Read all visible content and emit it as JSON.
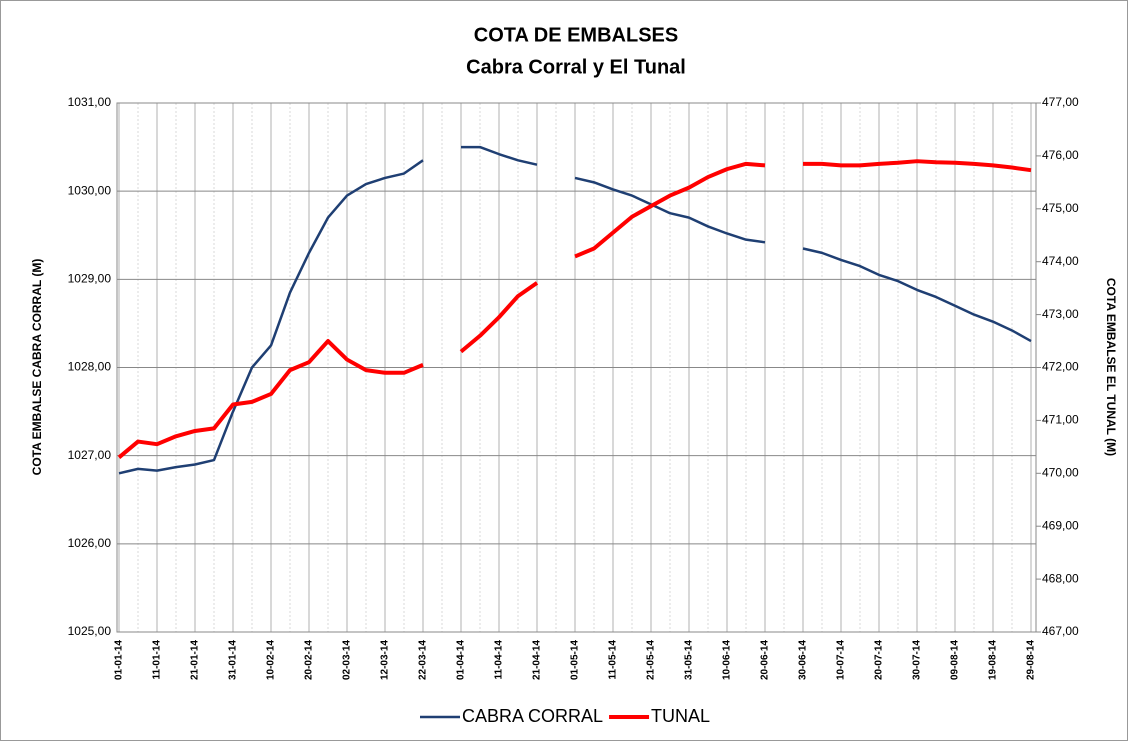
{
  "chart_data": {
    "type": "line",
    "title": "COTA DE EMBALSES",
    "subtitle": "Cabra Corral y El Tunal",
    "y_label": "COTA EMBALSE CABRA CORRAL (M)",
    "y2_label": "COTA EMBALSE EL TUNAL (M)",
    "categories": [
      "01-01-14",
      null,
      "11-01-14",
      null,
      "21-01-14",
      null,
      "31-01-14",
      null,
      "10-02-14",
      null,
      "20-02-14",
      null,
      "02-03-14",
      null,
      "12-03-14",
      null,
      "22-03-14",
      null,
      "01-04-14",
      null,
      "11-04-14",
      null,
      "21-04-14",
      null,
      "01-05-14",
      null,
      "11-05-14",
      null,
      "21-05-14",
      null,
      "31-05-14",
      null,
      "10-06-14",
      null,
      "20-06-14",
      null,
      "30-06-14",
      null,
      "10-07-14",
      null,
      "20-07-14",
      null,
      "30-07-14",
      null,
      "09-08-14",
      null,
      "19-08-14",
      null,
      "29-08-14"
    ],
    "ylim": [
      1025,
      1031
    ],
    "yticks": [
      {
        "value": 1025,
        "label": "1025,00"
      },
      {
        "value": 1026,
        "label": "1026,00"
      },
      {
        "value": 1027,
        "label": "1027,00"
      },
      {
        "value": 1028,
        "label": "1028,00"
      },
      {
        "value": 1029,
        "label": "1029,00"
      },
      {
        "value": 1030,
        "label": "1030,00"
      },
      {
        "value": 1031,
        "label": "1031,00"
      }
    ],
    "y2lim": [
      467,
      477
    ],
    "y2ticks": [
      {
        "value": 467,
        "label": "467,00"
      },
      {
        "value": 468,
        "label": "468,00"
      },
      {
        "value": 469,
        "label": "469,00"
      },
      {
        "value": 470,
        "label": "470,00"
      },
      {
        "value": 471,
        "label": "471,00"
      },
      {
        "value": 472,
        "label": "472,00"
      },
      {
        "value": 473,
        "label": "473,00"
      },
      {
        "value": 474,
        "label": "474,00"
      },
      {
        "value": 475,
        "label": "475,00"
      },
      {
        "value": 476,
        "label": "476,00"
      },
      {
        "value": 477,
        "label": "477,00"
      }
    ],
    "grid": true,
    "legend": "bottom",
    "series": [
      {
        "name": "CABRA CORRAL",
        "color": "#1f3f73",
        "axis": "y",
        "values": [
          1026.8,
          1026.85,
          1026.83,
          1026.87,
          1026.9,
          1026.95,
          1027.5,
          1028.0,
          1028.25,
          1028.85,
          1029.3,
          1029.7,
          1029.95,
          1030.08,
          1030.15,
          1030.2,
          1030.35,
          null,
          1030.5,
          1030.5,
          1030.42,
          1030.35,
          1030.3,
          null,
          1030.15,
          1030.1,
          1030.02,
          1029.95,
          1029.85,
          1029.75,
          1029.7,
          1029.6,
          1029.52,
          1029.45,
          1029.42,
          null,
          1029.35,
          1029.3,
          1029.22,
          1029.15,
          1029.05,
          1028.98,
          1028.88,
          1028.8,
          1028.7,
          1028.6,
          1028.52,
          1028.42,
          1028.3
        ]
      },
      {
        "name": "TUNAL",
        "color": "#ff0000",
        "axis": "y2",
        "values": [
          470.3,
          470.6,
          470.55,
          470.7,
          470.8,
          470.85,
          471.3,
          471.35,
          471.5,
          471.95,
          472.1,
          472.5,
          472.15,
          471.95,
          471.9,
          471.9,
          472.05,
          null,
          472.3,
          472.6,
          472.95,
          473.35,
          473.6,
          null,
          474.1,
          474.25,
          474.55,
          474.85,
          475.05,
          475.25,
          475.4,
          475.6,
          475.75,
          475.85,
          475.82,
          null,
          475.85,
          475.85,
          475.82,
          475.82,
          475.85,
          475.87,
          475.9,
          475.88,
          475.87,
          475.85,
          475.82,
          475.78,
          475.73
        ]
      }
    ]
  }
}
